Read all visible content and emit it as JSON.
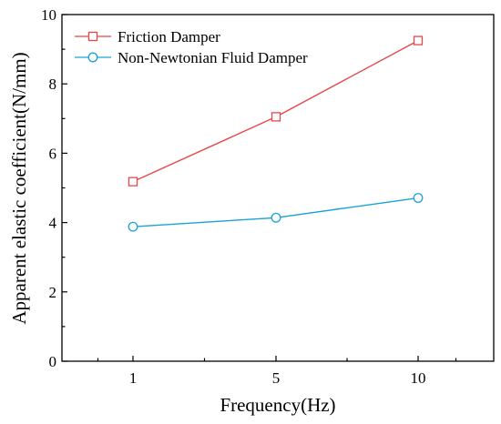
{
  "chart_data": {
    "type": "line",
    "title": "",
    "xlabel": "Frequency(Hz)",
    "ylabel": "Apparent elastic coefficient(N/mm)",
    "categories": [
      "1",
      "5",
      "10"
    ],
    "ylim": [
      0,
      10
    ],
    "yticks": [
      "0",
      "2",
      "4",
      "6",
      "8",
      "10"
    ],
    "grid": false,
    "legend_position": "top-left",
    "series": [
      {
        "name": "Friction Damper",
        "values": [
          5.18,
          7.05,
          9.25
        ],
        "color": "#e8474a",
        "marker": "square"
      },
      {
        "name": "Non-Newtonian Fluid Damper",
        "values": [
          3.88,
          4.14,
          4.71
        ],
        "color": "#1aa3d9",
        "marker": "circle"
      }
    ]
  }
}
